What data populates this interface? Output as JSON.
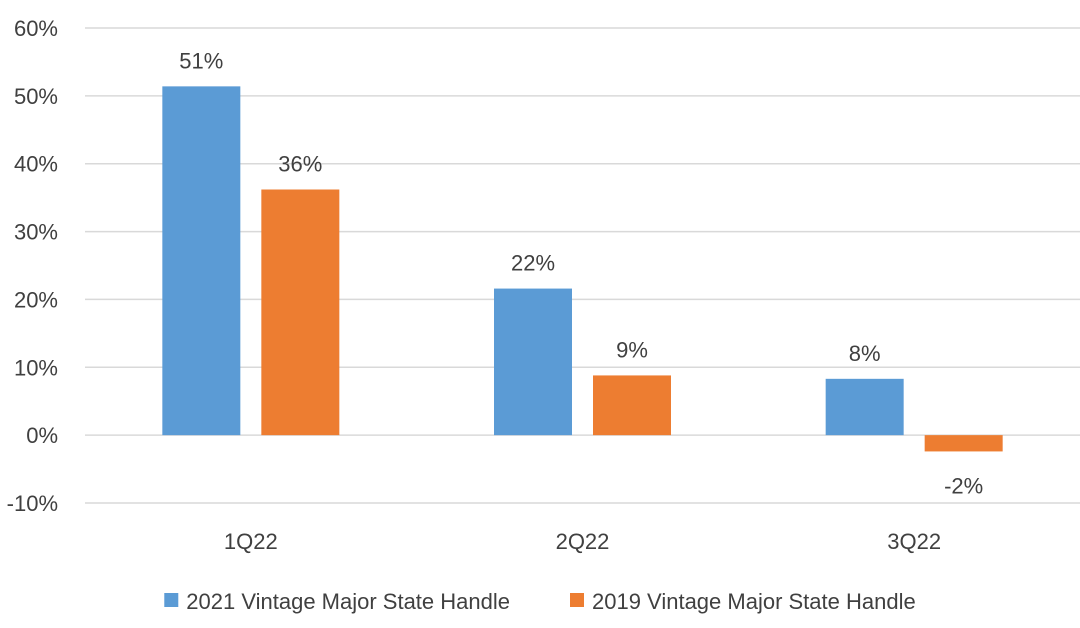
{
  "chart_data": {
    "type": "bar",
    "title": "",
    "xlabel": "",
    "ylabel": "",
    "categories": [
      "1Q22",
      "2Q22",
      "3Q22"
    ],
    "series": [
      {
        "name": "2021 Vintage Major State Handle",
        "color": "#5B9BD5",
        "values": [
          51.4,
          21.6,
          8.3
        ],
        "labels": [
          "51%",
          "22%",
          "8%"
        ]
      },
      {
        "name": "2019 Vintage Major State Handle",
        "color": "#ED7D31",
        "values": [
          36.2,
          8.8,
          -2.4
        ],
        "labels": [
          "36%",
          "9%",
          "-2%"
        ]
      }
    ],
    "ylim": [
      -10,
      60
    ],
    "yticks": [
      60,
      50,
      40,
      30,
      20,
      10,
      0,
      -10
    ],
    "ytick_labels": [
      "60%",
      "50%",
      "40%",
      "30%",
      "20%",
      "10%",
      "0%",
      "-10%"
    ],
    "grid": true,
    "legend_position": "bottom"
  }
}
